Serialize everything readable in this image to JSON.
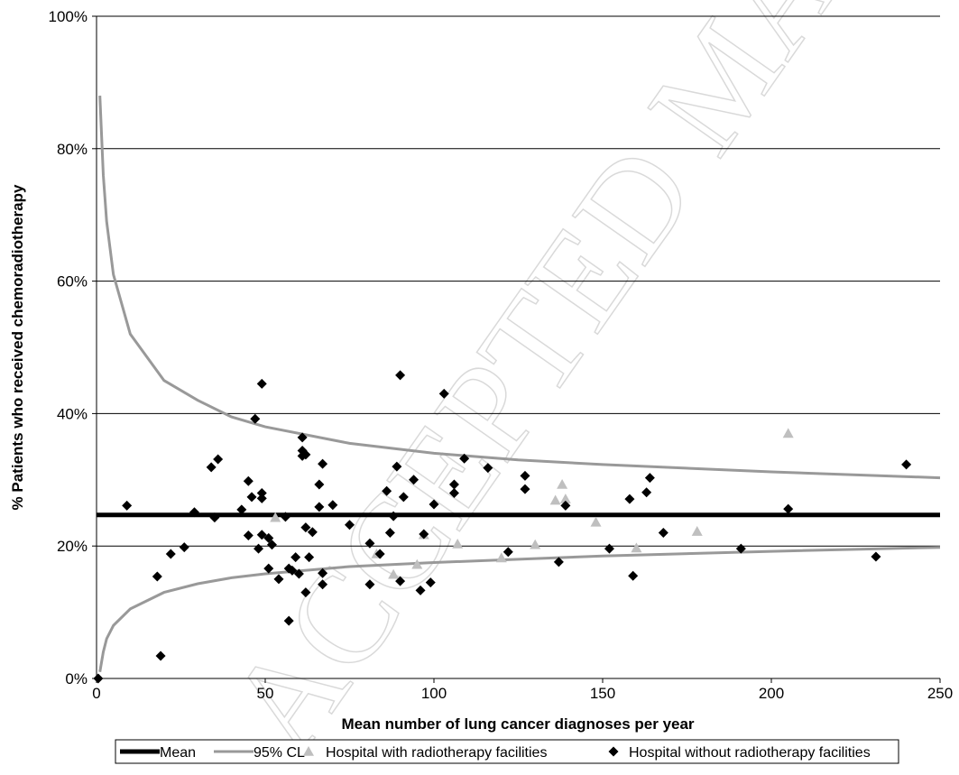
{
  "watermark": "ACCEPTED MANUSCRIPT",
  "chart_data": {
    "type": "scatter",
    "xlabel": "Mean number of lung cancer diagnoses per year",
    "ylabel": "% Patients who received chemoradiotherapy",
    "xlim": [
      0,
      250
    ],
    "ylim": [
      0,
      100
    ],
    "x_ticks": [
      0,
      50,
      100,
      150,
      200,
      250
    ],
    "y_ticks": [
      0,
      20,
      40,
      60,
      80,
      100
    ],
    "x_tick_labels": [
      "0",
      "50",
      "100",
      "150",
      "200",
      "250"
    ],
    "y_tick_labels": [
      "0%",
      "20%",
      "40%",
      "60%",
      "80%",
      "100%"
    ],
    "grid": "horizontal",
    "legend_position": "bottom",
    "mean": 24.7,
    "series": [
      {
        "name": "Mean",
        "kind": "line",
        "color": "#000000"
      },
      {
        "name": "95% CL",
        "kind": "funnel",
        "color": "#999999",
        "upper": [
          [
            1,
            88
          ],
          [
            2,
            76
          ],
          [
            3,
            69
          ],
          [
            5,
            61
          ],
          [
            10,
            52
          ],
          [
            20,
            45
          ],
          [
            30,
            42
          ],
          [
            40,
            39.5
          ],
          [
            50,
            38
          ],
          [
            75,
            35.5
          ],
          [
            100,
            34
          ],
          [
            125,
            33
          ],
          [
            150,
            32.3
          ],
          [
            200,
            31.2
          ],
          [
            250,
            30.3
          ]
        ],
        "lower": [
          [
            1,
            1
          ],
          [
            2,
            4
          ],
          [
            3,
            6
          ],
          [
            5,
            8
          ],
          [
            10,
            10.5
          ],
          [
            20,
            13
          ],
          [
            30,
            14.3
          ],
          [
            40,
            15.2
          ],
          [
            50,
            15.8
          ],
          [
            75,
            16.9
          ],
          [
            100,
            17.5
          ],
          [
            125,
            18
          ],
          [
            150,
            18.5
          ],
          [
            200,
            19.2
          ],
          [
            250,
            19.8
          ]
        ]
      },
      {
        "name": "Hospital with radiotherapy facilities",
        "kind": "triangle",
        "color": "#bfbfbf",
        "points": [
          [
            53,
            24.3
          ],
          [
            83,
            18.8
          ],
          [
            88,
            15.7
          ],
          [
            95,
            17.2
          ],
          [
            97,
            21.7
          ],
          [
            107,
            20.3
          ],
          [
            120,
            18.2
          ],
          [
            130,
            20.2
          ],
          [
            136,
            26.9
          ],
          [
            138,
            29.3
          ],
          [
            139,
            27.1
          ],
          [
            148,
            23.6
          ],
          [
            160,
            19.7
          ],
          [
            178,
            22.2
          ],
          [
            205,
            37
          ]
        ]
      },
      {
        "name": "Hospital without radiotherapy facilities",
        "kind": "diamond",
        "color": "#000000",
        "points": [
          [
            0.5,
            0
          ],
          [
            9,
            26.1
          ],
          [
            18,
            15.4
          ],
          [
            19,
            3.4
          ],
          [
            22,
            18.8
          ],
          [
            26,
            19.8
          ],
          [
            29,
            25.1
          ],
          [
            34,
            31.9
          ],
          [
            35,
            24.3
          ],
          [
            36,
            33.1
          ],
          [
            43,
            25.5
          ],
          [
            45,
            21.6
          ],
          [
            45,
            29.8
          ],
          [
            46,
            27.4
          ],
          [
            47,
            39.2
          ],
          [
            48,
            19.6
          ],
          [
            49,
            44.5
          ],
          [
            49,
            27.2
          ],
          [
            49,
            28
          ],
          [
            49,
            21.7
          ],
          [
            51,
            16.6
          ],
          [
            51,
            21.2
          ],
          [
            52,
            20.2
          ],
          [
            54,
            15
          ],
          [
            56,
            24.4
          ],
          [
            57,
            8.7
          ],
          [
            57,
            16.6
          ],
          [
            58,
            16.3
          ],
          [
            59,
            18.3
          ],
          [
            60,
            15.8
          ],
          [
            61,
            34.4
          ],
          [
            61,
            36.4
          ],
          [
            61,
            33.6
          ],
          [
            62,
            22.8
          ],
          [
            62,
            13
          ],
          [
            62,
            33.8
          ],
          [
            63,
            18.3
          ],
          [
            64,
            22.1
          ],
          [
            66,
            25.9
          ],
          [
            66,
            29.3
          ],
          [
            67,
            32.4
          ],
          [
            67,
            14.2
          ],
          [
            67,
            15.9
          ],
          [
            70,
            26.2
          ],
          [
            75,
            23.2
          ],
          [
            81,
            20.4
          ],
          [
            81,
            14.2
          ],
          [
            84,
            18.8
          ],
          [
            86,
            28.3
          ],
          [
            87,
            22
          ],
          [
            88,
            24.5
          ],
          [
            89,
            32
          ],
          [
            90,
            45.8
          ],
          [
            90,
            14.7
          ],
          [
            91,
            27.4
          ],
          [
            94,
            30
          ],
          [
            96,
            13.3
          ],
          [
            97,
            21.8
          ],
          [
            99,
            14.5
          ],
          [
            100,
            26.3
          ],
          [
            103,
            43
          ],
          [
            106,
            29.3
          ],
          [
            106,
            28
          ],
          [
            109,
            33.2
          ],
          [
            116,
            31.8
          ],
          [
            122,
            19.1
          ],
          [
            127,
            30.6
          ],
          [
            127,
            28.6
          ],
          [
            137,
            17.6
          ],
          [
            139,
            26.1
          ],
          [
            152,
            19.6
          ],
          [
            158,
            27.1
          ],
          [
            159,
            15.5
          ],
          [
            163,
            28.1
          ],
          [
            164,
            30.3
          ],
          [
            168,
            22
          ],
          [
            191,
            19.6
          ],
          [
            205,
            25.6
          ],
          [
            231,
            18.4
          ],
          [
            240,
            32.3
          ]
        ]
      }
    ]
  }
}
